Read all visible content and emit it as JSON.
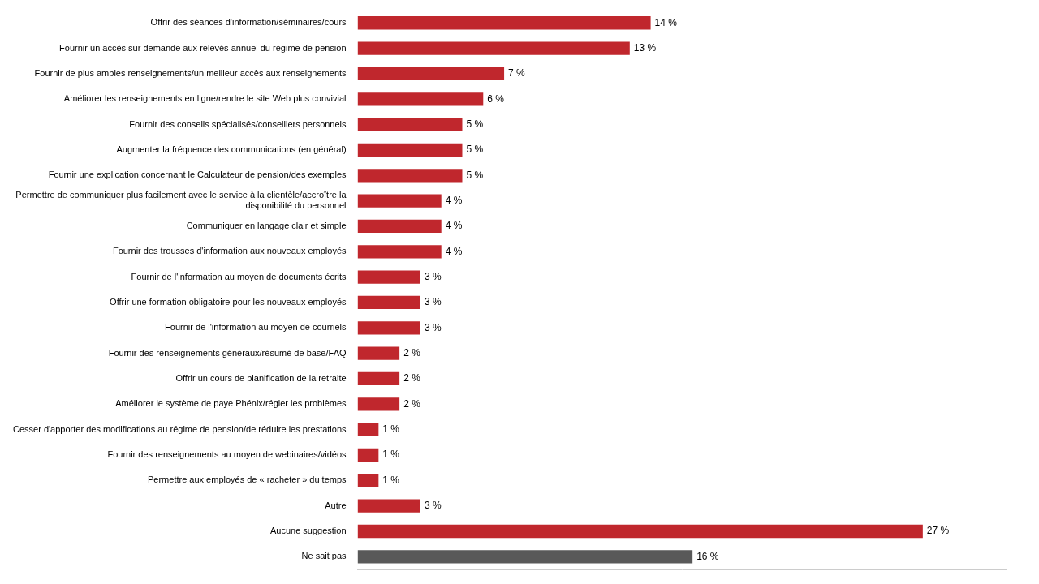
{
  "chart_data": {
    "type": "bar",
    "orientation": "horizontal",
    "categories": [
      "Offrir des séances d'information/séminaires/cours",
      "Fournir un accès sur demande aux relevés annuel du régime de pension",
      "Fournir de plus amples renseignements/un meilleur accès aux renseignements",
      "Améliorer les renseignements en ligne/rendre le site Web plus convivial",
      "Fournir des conseils spécialisés/conseillers personnels",
      "Augmenter la fréquence des communications (en général)",
      "Fournir une explication concernant le Calculateur de pension/des exemples",
      "Permettre de communiquer plus facilement avec le service à la clientèle/accroître la\ndisponibilité du personnel",
      "Communiquer en langage clair et simple",
      "Fournir des trousses d'information aux nouveaux employés",
      "Fournir de l'information au moyen de documents écrits",
      "Offrir une formation obligatoire pour les nouveaux employés",
      "Fournir de l'information au moyen de courriels",
      "Fournir des renseignements généraux/résumé de base/FAQ",
      "Offrir un cours de planification de la retraite",
      "Améliorer le système de paye Phénix/régler les problèmes",
      "Cesser d'apporter des modifications au régime de pension/de réduire les prestations",
      "Fournir des renseignements au moyen de webinaires/vidéos",
      "Permettre aux employés de « racheter » du temps",
      "Autre",
      "Aucune suggestion",
      "Ne sait pas"
    ],
    "values": [
      14,
      13,
      7,
      6,
      5,
      5,
      5,
      4,
      4,
      4,
      3,
      3,
      3,
      2,
      2,
      2,
      1,
      1,
      1,
      3,
      27,
      16
    ],
    "value_labels": [
      "14 %",
      "13 %",
      "7 %",
      "6 %",
      "5 %",
      "5 %",
      "5 %",
      "4 %",
      "4 %",
      "4 %",
      "3 %",
      "3 %",
      "3 %",
      "2 %",
      "2 %",
      "2 %",
      "1 %",
      "1 %",
      "1 %",
      "3 %",
      "27 %",
      "16 %"
    ],
    "colors": [
      "#c0272d",
      "#c0272d",
      "#c0272d",
      "#c0272d",
      "#c0272d",
      "#c0272d",
      "#c0272d",
      "#c0272d",
      "#c0272d",
      "#c0272d",
      "#c0272d",
      "#c0272d",
      "#c0272d",
      "#c0272d",
      "#c0272d",
      "#c0272d",
      "#c0272d",
      "#c0272d",
      "#c0272d",
      "#c0272d",
      "#c0272d",
      "#595959"
    ],
    "xlim": [
      0,
      31
    ],
    "data_labels": true,
    "tick_labels": "y",
    "grid": false
  }
}
